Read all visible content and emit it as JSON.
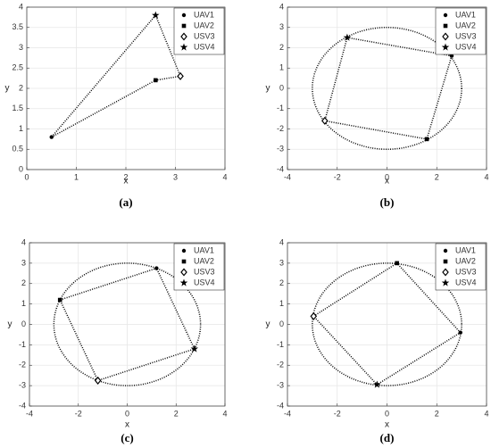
{
  "chart_data": [
    {
      "type": "scatter",
      "caption": "(a)",
      "xlabel": "x",
      "ylabel": "y",
      "xlim": [
        0,
        4
      ],
      "ylim": [
        0,
        4
      ],
      "xticks": [
        0,
        1,
        2,
        3,
        4
      ],
      "yticks": [
        0,
        0.5,
        1,
        1.5,
        2,
        2.5,
        3,
        3.5,
        4
      ],
      "grid": true,
      "legend": "northeast",
      "closed_path": true,
      "series": [
        {
          "name": "UAV1",
          "marker": "circle",
          "color": "#000000",
          "x": [
            0.5
          ],
          "values": [
            0.8
          ]
        },
        {
          "name": "UAV2",
          "marker": "square",
          "color": "#000000",
          "x": [
            2.6
          ],
          "values": [
            2.2
          ]
        },
        {
          "name": "USV3",
          "marker": "diamond",
          "color": "#000000",
          "x": [
            3.1
          ],
          "values": [
            2.3
          ]
        },
        {
          "name": "USV4",
          "marker": "star",
          "color": "#000000",
          "x": [
            2.6
          ],
          "values": [
            3.8
          ]
        }
      ]
    },
    {
      "type": "scatter",
      "caption": "(b)",
      "xlabel": "x",
      "ylabel": "y",
      "xlim": [
        -4,
        4
      ],
      "ylim": [
        -4,
        4
      ],
      "xticks": [
        -4,
        -2,
        0,
        2,
        4
      ],
      "yticks": [
        -4,
        -3,
        -2,
        -1,
        0,
        1,
        2,
        3,
        4
      ],
      "grid": true,
      "legend": "northeast",
      "closed_path": true,
      "circle_radius": 3,
      "series": [
        {
          "name": "UAV1",
          "marker": "circle",
          "color": "#000000",
          "x": [
            2.6
          ],
          "values": [
            1.6
          ]
        },
        {
          "name": "UAV2",
          "marker": "square",
          "color": "#000000",
          "x": [
            1.6
          ],
          "values": [
            -2.5
          ]
        },
        {
          "name": "USV3",
          "marker": "diamond",
          "color": "#000000",
          "x": [
            -2.5
          ],
          "values": [
            -1.6
          ]
        },
        {
          "name": "USV4",
          "marker": "star",
          "color": "#000000",
          "x": [
            -1.6
          ],
          "values": [
            2.5
          ]
        }
      ]
    },
    {
      "type": "scatter",
      "caption": "(c)",
      "xlabel": "x",
      "ylabel": "y",
      "xlim": [
        -4,
        4
      ],
      "ylim": [
        -4,
        4
      ],
      "xticks": [
        -4,
        -2,
        0,
        2,
        4
      ],
      "yticks": [
        -4,
        -3,
        -2,
        -1,
        0,
        1,
        2,
        3,
        4
      ],
      "grid": true,
      "legend": "northeast",
      "closed_path": true,
      "circle_radius": 3,
      "series": [
        {
          "name": "UAV1",
          "marker": "circle",
          "color": "#000000",
          "x": [
            1.2
          ],
          "values": [
            2.75
          ]
        },
        {
          "name": "UAV2",
          "marker": "square",
          "color": "#000000",
          "x": [
            -2.75
          ],
          "values": [
            1.2
          ]
        },
        {
          "name": "USV3",
          "marker": "diamond",
          "color": "#000000",
          "x": [
            -1.2
          ],
          "values": [
            -2.75
          ]
        },
        {
          "name": "USV4",
          "marker": "star",
          "color": "#000000",
          "x": [
            2.75
          ],
          "values": [
            -1.2
          ]
        }
      ]
    },
    {
      "type": "scatter",
      "caption": "(d)",
      "xlabel": "x",
      "ylabel": "y",
      "xlim": [
        -4,
        4
      ],
      "ylim": [
        -4,
        4
      ],
      "xticks": [
        -4,
        -2,
        0,
        2,
        4
      ],
      "yticks": [
        -4,
        -3,
        -2,
        -1,
        0,
        1,
        2,
        3,
        4
      ],
      "grid": true,
      "legend": "northeast",
      "closed_path": true,
      "circle_radius": 3,
      "series": [
        {
          "name": "UAV1",
          "marker": "circle",
          "color": "#000000",
          "x": [
            2.95
          ],
          "values": [
            -0.4
          ]
        },
        {
          "name": "UAV2",
          "marker": "square",
          "color": "#000000",
          "x": [
            0.4
          ],
          "values": [
            3.0
          ]
        },
        {
          "name": "USV3",
          "marker": "diamond",
          "color": "#000000",
          "x": [
            -2.95
          ],
          "values": [
            0.4
          ]
        },
        {
          "name": "USV4",
          "marker": "star",
          "color": "#000000",
          "x": [
            -0.4
          ],
          "values": [
            -2.95
          ]
        }
      ]
    }
  ]
}
